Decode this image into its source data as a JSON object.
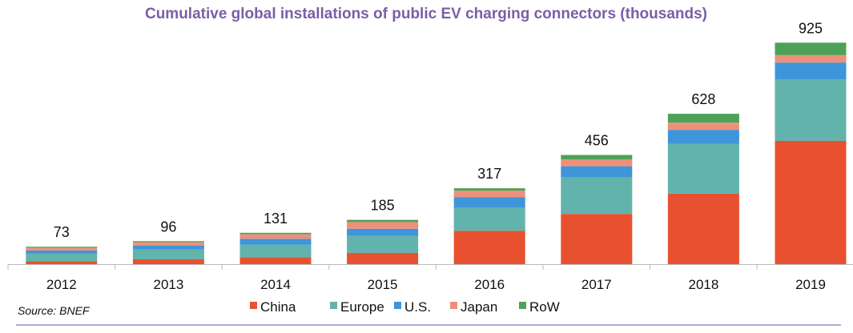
{
  "chart_data": {
    "type": "bar",
    "stacked": true,
    "title": "Cumulative global installations of public EV charging connectors (thousands)",
    "xlabel": "",
    "ylabel": "",
    "ylim": [
      0,
      960
    ],
    "grid": false,
    "legend_position": "bottom",
    "categories": [
      "2012",
      "2013",
      "2014",
      "2015",
      "2016",
      "2017",
      "2018",
      "2019"
    ],
    "totals": [
      73,
      96,
      131,
      185,
      317,
      456,
      628,
      925
    ],
    "series": [
      {
        "name": "China",
        "color": "#E8512F",
        "values": [
          12,
          20,
          29,
          47,
          139,
          210,
          295,
          515
        ]
      },
      {
        "name": "Europe",
        "color": "#62B3AB",
        "values": [
          32,
          41,
          52,
          71,
          96,
          152,
          207,
          257
        ]
      },
      {
        "name": "U.S.",
        "color": "#3E95D9",
        "values": [
          13,
          17,
          25,
          30,
          45,
          47,
          59,
          70
        ]
      },
      {
        "name": "Japan",
        "color": "#EE8F7A",
        "values": [
          12,
          14,
          19,
          28,
          27,
          28,
          30,
          31
        ]
      },
      {
        "name": "RoW",
        "color": "#4DA257",
        "values": [
          4,
          4,
          6,
          9,
          10,
          19,
          37,
          52
        ]
      }
    ],
    "source": "Source: BNEF"
  },
  "colors": {
    "title": "#7B5EA7",
    "axis": "#BBBBBB",
    "rule": "#9B8FC9"
  }
}
